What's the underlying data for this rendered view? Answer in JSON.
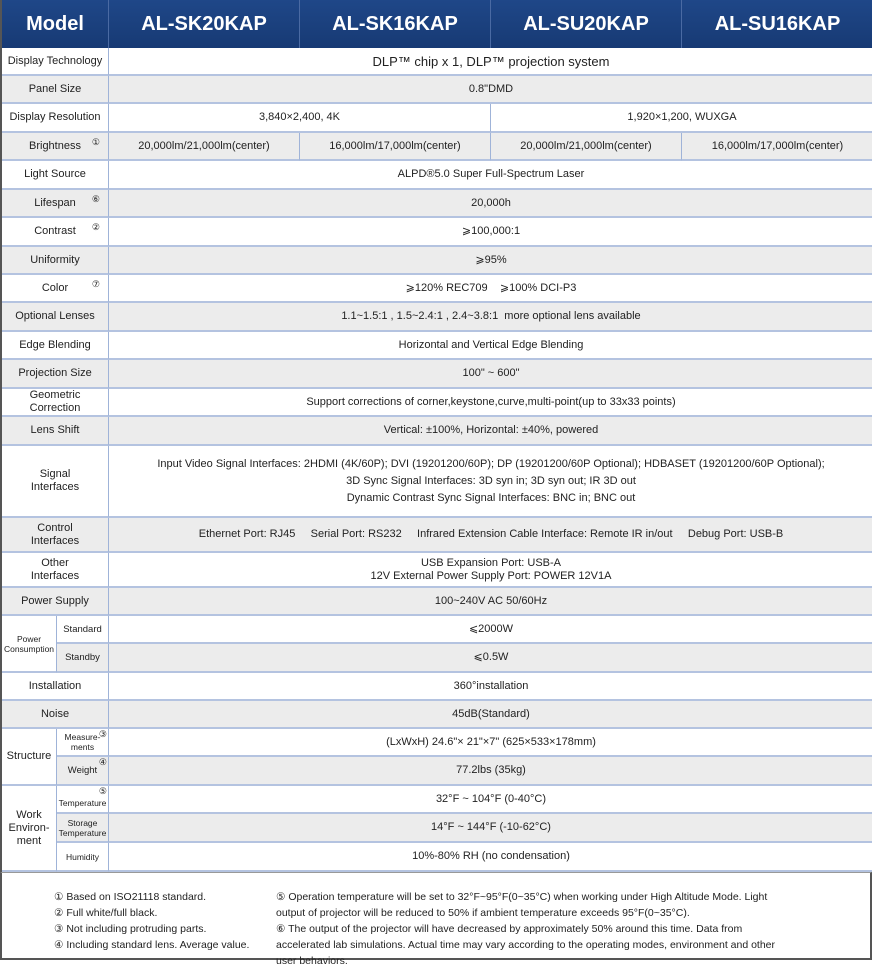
{
  "header": {
    "model_label": "Model",
    "models": [
      "AL-SK20KAP",
      "AL-SK16KAP",
      "AL-SU20KAP",
      "AL-SU16KAP"
    ]
  },
  "rows": {
    "display_technology": {
      "label": "Display Technology",
      "value": "DLP™ chip x 1, DLP™ projection system"
    },
    "panel_size": {
      "label": "Panel Size",
      "value": "0.8\"DMD"
    },
    "display_resolution": {
      "label": "Display Resolution",
      "values": [
        "3,840×2,400, 4K",
        "1,920×1,200, WUXGA"
      ]
    },
    "brightness": {
      "label": "Brightness",
      "note": "①",
      "values": [
        "20,000lm/21,000lm(center)",
        "16,000lm/17,000lm(center)",
        "20,000lm/21,000lm(center)",
        "16,000lm/17,000lm(center)"
      ]
    },
    "light_source": {
      "label": "Light Source",
      "value": "ALPD®5.0 Super Full-Spectrum Laser"
    },
    "lifespan": {
      "label": "Lifespan",
      "note": "⑥",
      "value": "20,000h"
    },
    "contrast": {
      "label": "Contrast",
      "note": "②",
      "value": "⩾100,000:1"
    },
    "uniformity": {
      "label": "Uniformity",
      "value": "⩾95%"
    },
    "color": {
      "label": "Color",
      "note": "⑦",
      "value": "⩾120% REC709    ⩾100% DCI-P3"
    },
    "optional_lenses": {
      "label": "Optional Lenses",
      "value": "1.1~1.5:1 , 1.5~2.4:1 , 2.4~3.8:1  more optional lens available"
    },
    "edge_blending": {
      "label": "Edge Blending",
      "value": "Horizontal and Vertical Edge Blending"
    },
    "projection_size": {
      "label": "Projection Size",
      "value": "100\" ~ 600\""
    },
    "geometric_correction": {
      "label": "Geometric Correction",
      "value": "Support corrections of corner,keystone,curve,multi-point(up to 33x33 points)"
    },
    "lens_shift": {
      "label": "Lens Shift",
      "value": "Vertical: ±100%, Horizontal: ±40%, powered"
    },
    "signal_interfaces": {
      "label": "Signal Interfaces",
      "lines": [
        "Input Video Signal Interfaces: 2HDMI (4K/60P); DVI (19201200/60P); DP (19201200/60P Optional); HDBASET (19201200/60P Optional);",
        "3D Sync Signal Interfaces: 3D syn in; 3D syn out; IR 3D out",
        "Dynamic Contrast Sync Signal Interfaces: BNC in; BNC out"
      ]
    },
    "control_interfaces": {
      "label": "Control Interfaces",
      "value": "Ethernet Port: RJ45     Serial Port: RS232     Infrared Extension Cable Interface: Remote IR in/out     Debug Port: USB-B"
    },
    "other_interfaces": {
      "label": "Other Interfaces",
      "lines": [
        "USB Expansion Port: USB-A",
        "12V External Power Supply Port: POWER 12V1A"
      ]
    },
    "power_supply": {
      "label": "Power Supply",
      "value": "100~240V AC 50/60Hz"
    },
    "power_consumption": {
      "label": "Power Consumption",
      "standard_label": "Standard",
      "standard": "⩽2000W",
      "standby_label": "Standby",
      "standby": "⩽0.5W"
    },
    "installation": {
      "label": "Installation",
      "value": "360°installation"
    },
    "noise": {
      "label": "Noise",
      "value": "45dB(Standard)"
    },
    "structure": {
      "label": "Structure",
      "measurements_label": "Measure-ments",
      "measurements_note": "③",
      "measurements": "(LxWxH) 24.6\"× 21\"×7\" (625×533×178mm)",
      "weight_label": "Weight",
      "weight_note": "④",
      "weight": "77.2lbs (35kg)"
    },
    "work_environment": {
      "label": "Work Environ-ment",
      "temperature_label": "Temperature",
      "temperature_note": "⑤",
      "temperature": "32°F ~ 104°F (0-40°C)",
      "storage_label": "Storage Temperature",
      "storage": "14°F ~ 144°F (-10-62°C)",
      "humidity_label": "Humidity",
      "humidity": "10%-80% RH (no condensation)"
    }
  },
  "footnotes": {
    "left": [
      "① Based on ISO21118 standard.",
      "② Full white/full black.",
      "③ Not including protruding parts.",
      "④ Including standard lens. Average value."
    ],
    "right": [
      "⑤ Operation temperature will be set to 32°F~95°F(0~35°C) when working under High Altitude Mode. Light output of projector will be reduced to 50% if ambient temperature exceeds 95°F(0~35°C).",
      "⑥ The output of the projector will have decreased by approximately 50% around this time. Data from accelerated lab simulations. Actual time may vary according to the operating modes, environment and other user behaviors."
    ]
  },
  "colors": {
    "header": "#1f4788",
    "row_alt": "#ececec",
    "grid": "#b4c3e0"
  }
}
